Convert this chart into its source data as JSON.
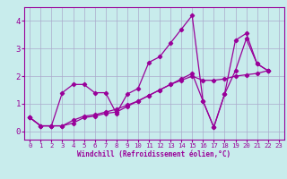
{
  "title": "",
  "xlabel": "Windchill (Refroidissement éolien,°C)",
  "ylabel": "",
  "background_color": "#c8ecec",
  "grid_color": "#aaaacc",
  "line_color": "#990099",
  "xlim": [
    -0.5,
    23.5
  ],
  "ylim": [
    -0.3,
    4.5
  ],
  "xticks": [
    0,
    1,
    2,
    3,
    4,
    5,
    6,
    7,
    8,
    9,
    10,
    11,
    12,
    13,
    14,
    15,
    16,
    17,
    18,
    19,
    20,
    21,
    22,
    23
  ],
  "yticks": [
    0,
    1,
    2,
    3,
    4
  ],
  "series": [
    [
      0.5,
      0.2,
      0.2,
      1.4,
      1.7,
      1.7,
      1.4,
      1.4,
      0.65,
      1.35,
      1.55,
      2.5,
      2.7,
      3.2,
      3.7,
      4.2,
      1.1,
      0.15,
      1.35,
      3.3,
      3.55,
      2.45,
      2.2
    ],
    [
      0.5,
      0.2,
      0.2,
      0.2,
      0.3,
      0.5,
      0.55,
      0.65,
      0.7,
      0.9,
      1.1,
      1.3,
      1.5,
      1.7,
      1.85,
      2.0,
      1.85,
      1.85,
      1.9,
      2.0,
      2.05,
      2.1,
      2.2
    ],
    [
      0.5,
      0.2,
      0.2,
      0.2,
      0.4,
      0.55,
      0.6,
      0.7,
      0.8,
      0.95,
      1.1,
      1.3,
      1.5,
      1.7,
      1.9,
      2.1,
      1.1,
      0.15,
      1.35,
      2.2,
      3.35,
      2.45,
      2.2
    ]
  ],
  "x_values": [
    0,
    1,
    2,
    3,
    4,
    5,
    6,
    7,
    8,
    9,
    10,
    11,
    12,
    13,
    14,
    15,
    16,
    17,
    18,
    19,
    20,
    21,
    22
  ]
}
